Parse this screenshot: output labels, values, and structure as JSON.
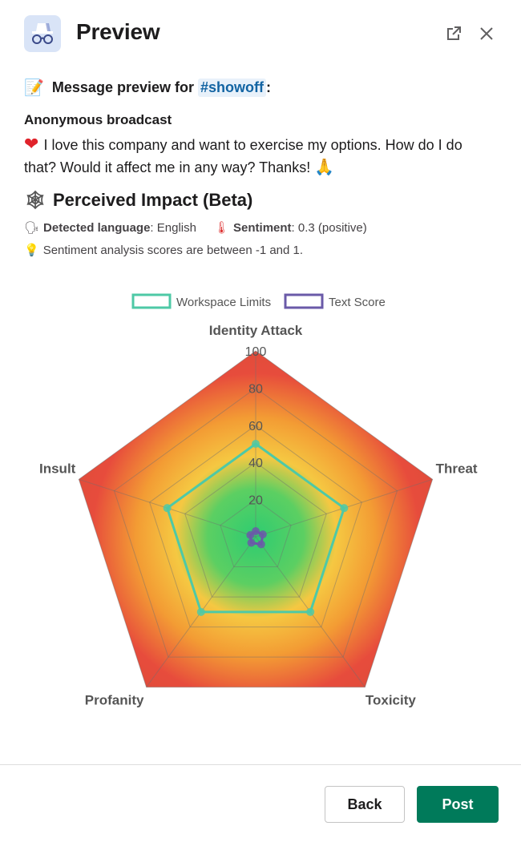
{
  "header": {
    "title": "Preview"
  },
  "preview": {
    "label": "Message preview for",
    "channel": "#showoff",
    "colon": ":"
  },
  "message": {
    "sender": "Anonymous broadcast",
    "text": "I love this company and want to exercise my options. How do I do that? Would it affect me in any way? Thanks!"
  },
  "impact": {
    "title": "Perceived Impact (Beta)",
    "language_label": "Detected language",
    "language_value": ": English",
    "sentiment_label": "Sentiment",
    "sentiment_value": ": 0.3 (positive)",
    "hint": "Sentiment analysis scores are between -1 and 1."
  },
  "chart_data": {
    "type": "radar",
    "axes": [
      "Identity Attack",
      "Threat",
      "Toxicity",
      "Profanity",
      "Insult"
    ],
    "ticks": [
      20,
      40,
      60,
      80,
      100
    ],
    "range": [
      0,
      100
    ],
    "legend_position": "top",
    "series": [
      {
        "name": "Workspace Limits",
        "color": "#4ec9a6",
        "values": [
          50,
          50,
          50,
          50,
          50
        ]
      },
      {
        "name": "Text Score",
        "color": "#6a5aa8",
        "values": [
          3,
          4,
          5,
          4,
          3
        ]
      }
    ]
  },
  "footer": {
    "back_label": "Back",
    "post_label": "Post"
  }
}
